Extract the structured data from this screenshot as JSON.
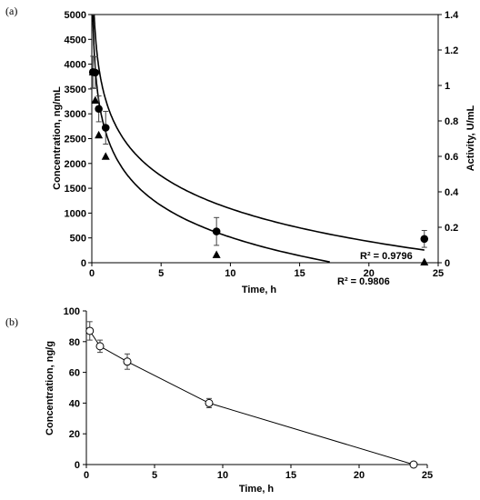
{
  "chart_data": [
    {
      "type": "scatter",
      "panel_label": "(a)",
      "xlabel": "Time, h",
      "ylabel": "Concentration, ng/mL",
      "y2label": "Activity, U/mL",
      "xlim": [
        0,
        25
      ],
      "ylim": [
        0,
        5000
      ],
      "y2lim": [
        0,
        1.4
      ],
      "x_ticks": [
        "0",
        "5",
        "10",
        "15",
        "20",
        "25"
      ],
      "y_ticks": [
        "0",
        "500",
        "1000",
        "1500",
        "2000",
        "2500",
        "3000",
        "3500",
        "4000",
        "4500",
        "5000"
      ],
      "y2_ticks": [
        "0",
        "0.2",
        "0.4",
        "0.6",
        "0.8",
        "1",
        "1.2",
        "1.4"
      ],
      "grid": false,
      "series": [
        {
          "marker": "circle",
          "axis": "left",
          "x": [
            0.08,
            0.25,
            0.5,
            1,
            9,
            24
          ],
          "y": [
            3840,
            3830,
            3100,
            2720,
            630,
            480
          ],
          "err": [
            320,
            320,
            260,
            330,
            280,
            170
          ],
          "fit": {
            "a": 3285,
            "b": -953.4
          },
          "r2_label": "R² = 0.9796"
        },
        {
          "marker": "triangle",
          "axis": "left",
          "x": [
            0.08,
            0.25,
            0.5,
            1,
            9,
            24
          ],
          "y": [
            3840,
            3270,
            2570,
            2140,
            160,
            10
          ],
          "err": [
            0,
            0,
            0,
            0,
            0,
            0
          ],
          "fit": {
            "a": 2633,
            "b": -920
          },
          "r2_label": "R² = 0.9806"
        }
      ]
    },
    {
      "type": "line",
      "panel_label": "(b)",
      "xlabel": "Time, h",
      "ylabel": "Concentration, ng/g",
      "xlim": [
        0,
        25
      ],
      "ylim": [
        0,
        100
      ],
      "x_ticks": [
        "0",
        "5",
        "10",
        "15",
        "20",
        "25"
      ],
      "y_ticks": [
        "0",
        "20",
        "40",
        "60",
        "80",
        "100"
      ],
      "grid": false,
      "series": [
        {
          "marker": "open-circle",
          "x": [
            0.25,
            1,
            3,
            9,
            24
          ],
          "y": [
            87,
            77,
            67,
            40,
            0
          ],
          "err": [
            6,
            4,
            5,
            3,
            0
          ]
        }
      ]
    }
  ]
}
